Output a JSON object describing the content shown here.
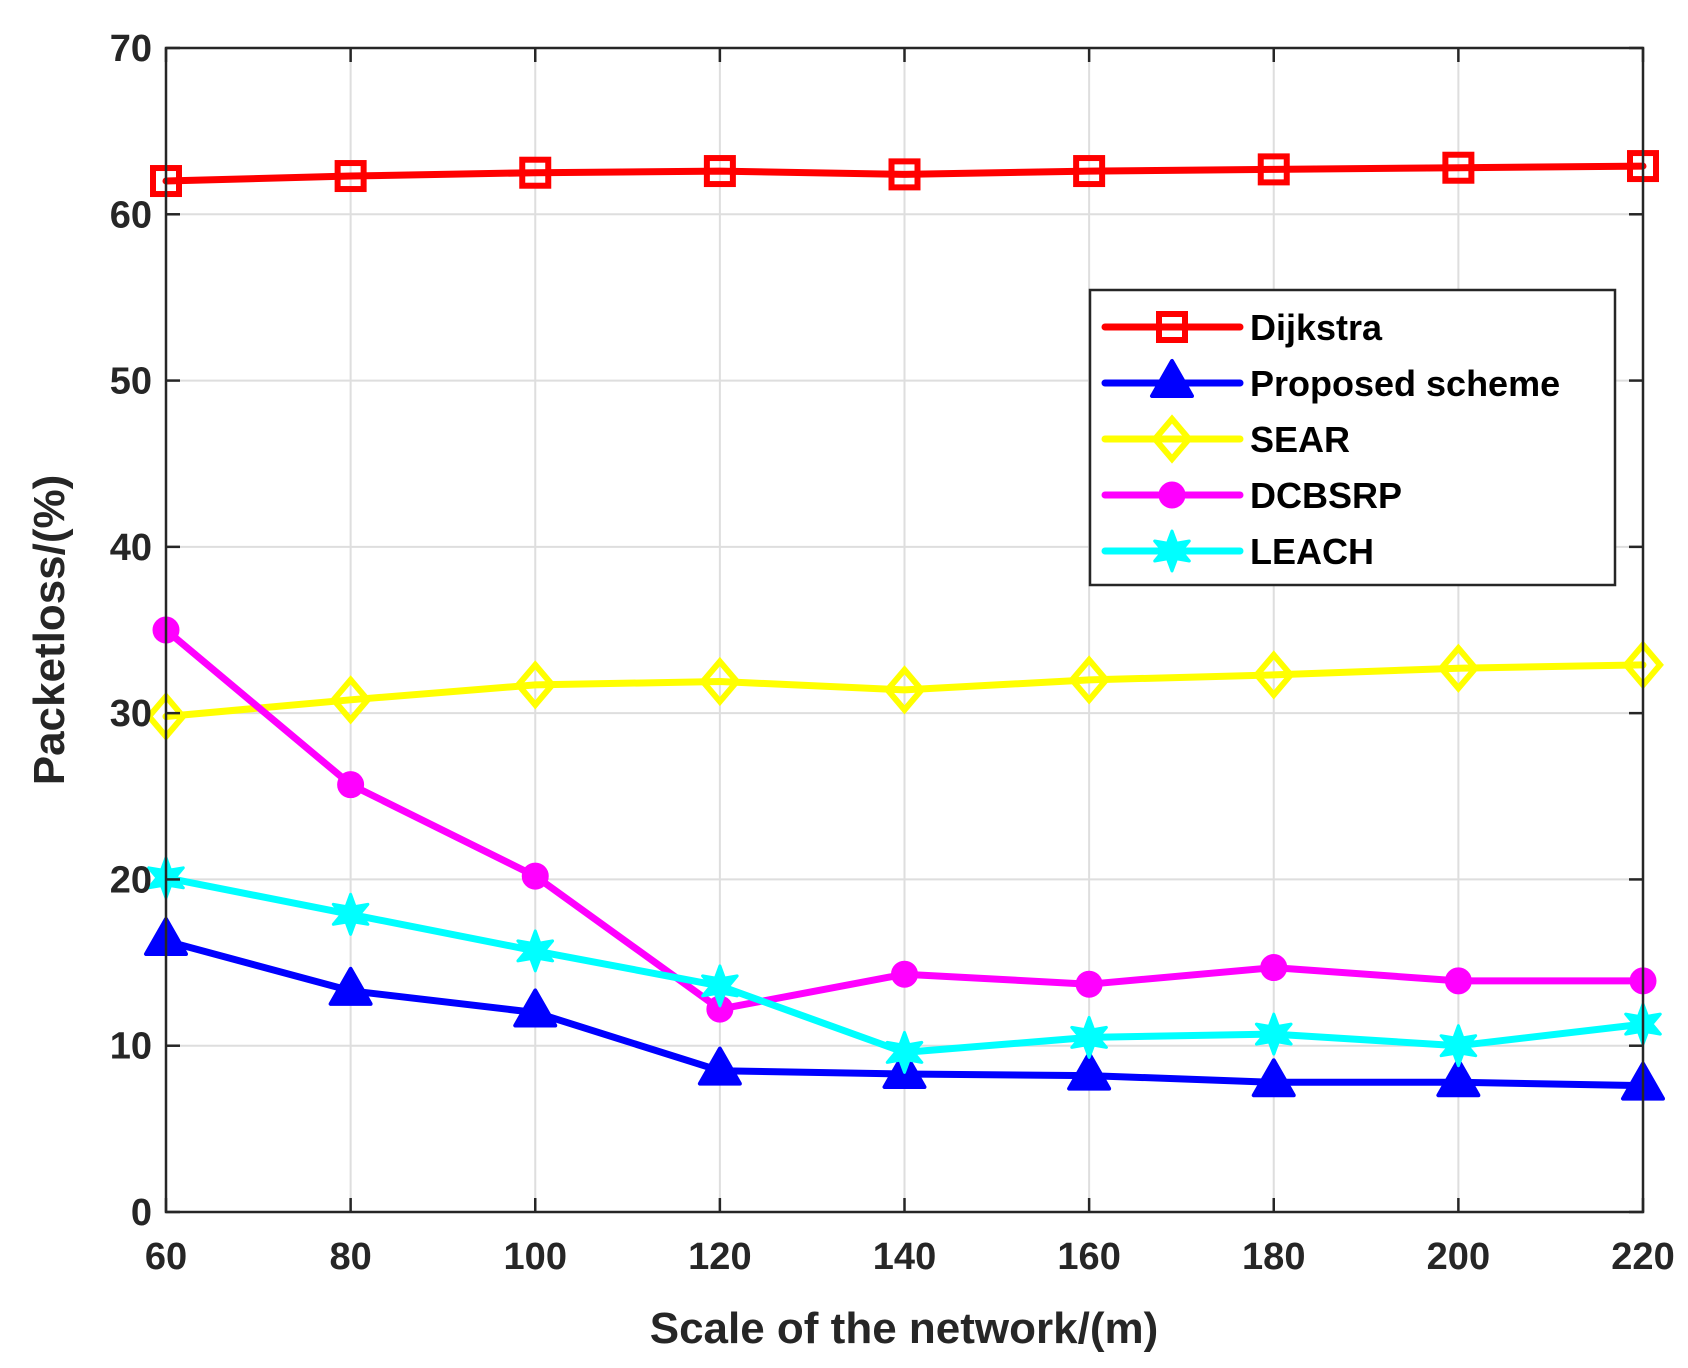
{
  "chart_data": {
    "type": "line",
    "title": "",
    "xlabel": "Scale of the network/(m)",
    "ylabel": "Packetloss/(%)",
    "x": [
      60,
      80,
      100,
      120,
      140,
      160,
      180,
      200,
      220
    ],
    "xlim": [
      60,
      220
    ],
    "ylim": [
      0,
      70
    ],
    "xticks": [
      "60",
      "80",
      "100",
      "120",
      "140",
      "160",
      "180",
      "200",
      "220"
    ],
    "yticks": [
      "0",
      "10",
      "20",
      "30",
      "40",
      "50",
      "60",
      "70"
    ],
    "grid": true,
    "legend_position": "top-right",
    "series": [
      {
        "name": "Dijkstra",
        "marker": "square",
        "color": "#ff0000",
        "values": [
          62.0,
          62.3,
          62.5,
          62.6,
          62.4,
          62.6,
          62.7,
          62.8,
          62.9
        ]
      },
      {
        "name": "Proposed scheme",
        "marker": "triangle",
        "color": "#0000ff",
        "values": [
          16.3,
          13.3,
          12.0,
          8.5,
          8.3,
          8.2,
          7.8,
          7.8,
          7.6
        ]
      },
      {
        "name": "SEAR",
        "marker": "diamond",
        "color": "#ffff00",
        "values": [
          29.8,
          30.8,
          31.7,
          31.9,
          31.4,
          32.0,
          32.3,
          32.7,
          32.9
        ]
      },
      {
        "name": "DCBSRP",
        "marker": "circle",
        "color": "#ff00ff",
        "values": [
          35.0,
          25.7,
          20.2,
          12.2,
          14.3,
          13.7,
          14.7,
          13.9,
          13.9
        ]
      },
      {
        "name": "LEACH",
        "marker": "star",
        "color": "#00ffff",
        "values": [
          20.1,
          17.9,
          15.7,
          13.6,
          9.6,
          10.5,
          10.7,
          10.0,
          11.3
        ]
      }
    ]
  }
}
